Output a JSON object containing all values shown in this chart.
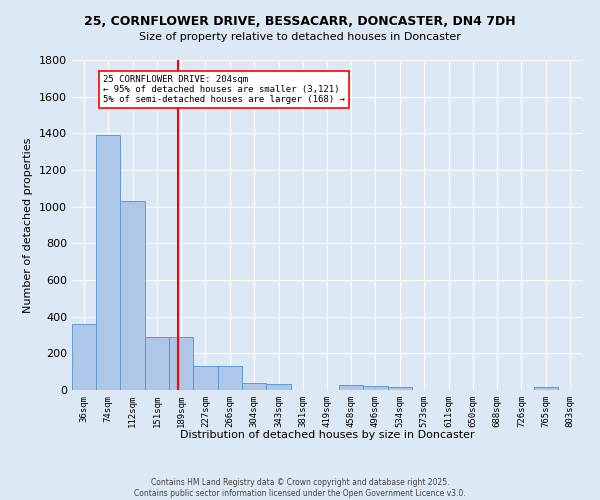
{
  "title_line1": "25, CORNFLOWER DRIVE, BESSACARR, DONCASTER, DN4 7DH",
  "title_line2": "Size of property relative to detached houses in Doncaster",
  "xlabel": "Distribution of detached houses by size in Doncaster",
  "ylabel": "Number of detached properties",
  "bin_labels": [
    "36sqm",
    "74sqm",
    "112sqm",
    "151sqm",
    "189sqm",
    "227sqm",
    "266sqm",
    "304sqm",
    "343sqm",
    "381sqm",
    "419sqm",
    "458sqm",
    "496sqm",
    "534sqm",
    "573sqm",
    "611sqm",
    "650sqm",
    "688sqm",
    "726sqm",
    "765sqm",
    "803sqm"
  ],
  "bin_edges": [
    36,
    74,
    112,
    151,
    189,
    227,
    266,
    304,
    343,
    381,
    419,
    458,
    496,
    534,
    573,
    611,
    650,
    688,
    726,
    765,
    803,
    841
  ],
  "bar_heights": [
    360,
    1390,
    1030,
    290,
    290,
    130,
    130,
    40,
    35,
    0,
    0,
    30,
    20,
    15,
    0,
    0,
    0,
    0,
    0,
    15,
    0
  ],
  "bar_color": "#aec6e8",
  "bar_edge_color": "#5b9bd5",
  "background_color": "#dce9f5",
  "grid_color": "#ffffff",
  "vline_x": 204,
  "vline_color": "red",
  "annotation_text": "25 CORNFLOWER DRIVE: 204sqm\n← 95% of detached houses are smaller (3,121)\n5% of semi-detached houses are larger (168) →",
  "annotation_box_color": "white",
  "annotation_box_edge_color": "red",
  "ylim": [
    0,
    1800
  ],
  "yticks": [
    0,
    200,
    400,
    600,
    800,
    1000,
    1200,
    1400,
    1600,
    1800
  ],
  "footer_line1": "Contains HM Land Registry data © Crown copyright and database right 2025.",
  "footer_line2": "Contains public sector information licensed under the Open Government Licence v3.0."
}
